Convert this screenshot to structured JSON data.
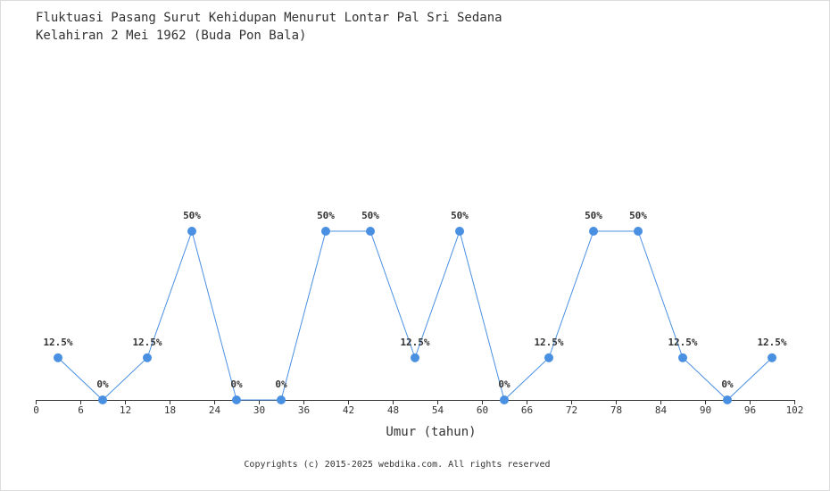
{
  "title_line1": "Fluktuasi Pasang Surut Kehidupan Menurut Lontar Pal Sri Sedana",
  "title_line2": "Kelahiran 2 Mei 1962 (Buda Pon Bala)",
  "footer": "Copyrights (c) 2015-2025 webdika.com. All rights reserved",
  "colors": {
    "line": "#4a90e2",
    "marker": "#4a90e2",
    "axis": "#333333"
  },
  "chart_data": {
    "type": "line",
    "title": "Fluktuasi Pasang Surut Kehidupan Menurut Lontar Pal Sri Sedana",
    "subtitle": "Kelahiran 2 Mei 1962 (Buda Pon Bala)",
    "xlabel": "Umur (tahun)",
    "ylabel": "",
    "xlim": [
      0,
      102
    ],
    "ylim": [
      0,
      100
    ],
    "x_ticks": [
      0,
      6,
      12,
      18,
      24,
      30,
      36,
      42,
      48,
      54,
      60,
      66,
      72,
      78,
      84,
      90,
      96,
      102
    ],
    "grid": false,
    "series": [
      {
        "x": [
          3,
          9,
          15,
          21,
          27,
          33,
          39,
          45,
          51,
          57,
          63,
          69,
          75,
          81,
          87,
          93,
          99
        ],
        "values": [
          12.5,
          0,
          12.5,
          50,
          0,
          0,
          50,
          50,
          12.5,
          50,
          0,
          12.5,
          50,
          50,
          12.5,
          0,
          12.5
        ],
        "labels": [
          "12.5%",
          "0%",
          "12.5%",
          "50%",
          "0%",
          "0%",
          "50%",
          "50%",
          "12.5%",
          "50%",
          "0%",
          "12.5%",
          "50%",
          "50%",
          "12.5%",
          "0%",
          "12.5%"
        ]
      }
    ]
  }
}
